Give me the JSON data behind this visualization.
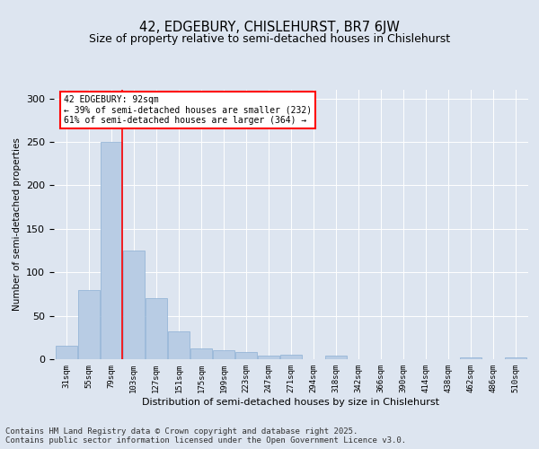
{
  "title1": "42, EDGEBURY, CHISLEHURST, BR7 6JW",
  "title2": "Size of property relative to semi-detached houses in Chislehurst",
  "xlabel": "Distribution of semi-detached houses by size in Chislehurst",
  "ylabel": "Number of semi-detached properties",
  "categories": [
    "31sqm",
    "55sqm",
    "79sqm",
    "103sqm",
    "127sqm",
    "151sqm",
    "175sqm",
    "199sqm",
    "223sqm",
    "247sqm",
    "271sqm",
    "294sqm",
    "318sqm",
    "342sqm",
    "366sqm",
    "390sqm",
    "414sqm",
    "438sqm",
    "462sqm",
    "486sqm",
    "510sqm"
  ],
  "values": [
    15,
    80,
    250,
    125,
    70,
    32,
    12,
    10,
    8,
    4,
    5,
    0,
    4,
    0,
    0,
    0,
    0,
    0,
    2,
    0,
    2
  ],
  "bar_color": "#b8cce4",
  "bar_edge_color": "#8bafd4",
  "vline_color": "red",
  "annotation_text": "42 EDGEBURY: 92sqm\n← 39% of semi-detached houses are smaller (232)\n61% of semi-detached houses are larger (364) →",
  "annotation_box_color": "white",
  "annotation_box_edge_color": "red",
  "background_color": "#dde5f0",
  "plot_bg_color": "#dde5f0",
  "footnote": "Contains HM Land Registry data © Crown copyright and database right 2025.\nContains public sector information licensed under the Open Government Licence v3.0.",
  "ylim": [
    0,
    310
  ],
  "title_fontsize": 10.5,
  "subtitle_fontsize": 9,
  "footnote_fontsize": 6.5,
  "ylabel_fontsize": 7.5,
  "xlabel_fontsize": 8,
  "ytick_fontsize": 8,
  "xtick_fontsize": 6.5
}
